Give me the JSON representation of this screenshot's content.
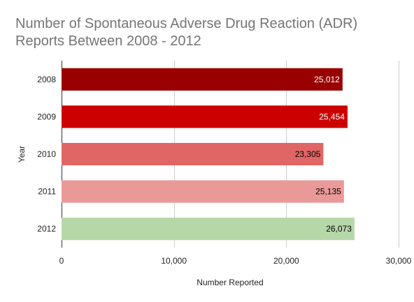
{
  "chart_data": {
    "type": "bar",
    "orientation": "horizontal",
    "title": "Number of Spontaneous Adverse Drug Reaction (ADR) Reports Between 2008 - 2012",
    "xlabel": "Number Reported",
    "ylabel": "Year",
    "categories": [
      "2008",
      "2009",
      "2010",
      "2011",
      "2012"
    ],
    "values": [
      25012,
      25454,
      23305,
      25135,
      26073
    ],
    "value_labels": [
      "25,012",
      "25,454",
      "23,305",
      "25,135",
      "26,073"
    ],
    "bar_colors": [
      "#990000",
      "#cc0000",
      "#e06666",
      "#ea9999",
      "#b6d7a8"
    ],
    "label_colors": [
      "#ffffff",
      "#ffffff",
      "#000000",
      "#000000",
      "#000000"
    ],
    "xlim": [
      0,
      30000
    ],
    "x_ticks": [
      0,
      10000,
      20000,
      30000
    ],
    "x_tick_labels": [
      "0",
      "10,000",
      "20,000",
      "30,000"
    ],
    "grid": true,
    "legend": "none"
  }
}
